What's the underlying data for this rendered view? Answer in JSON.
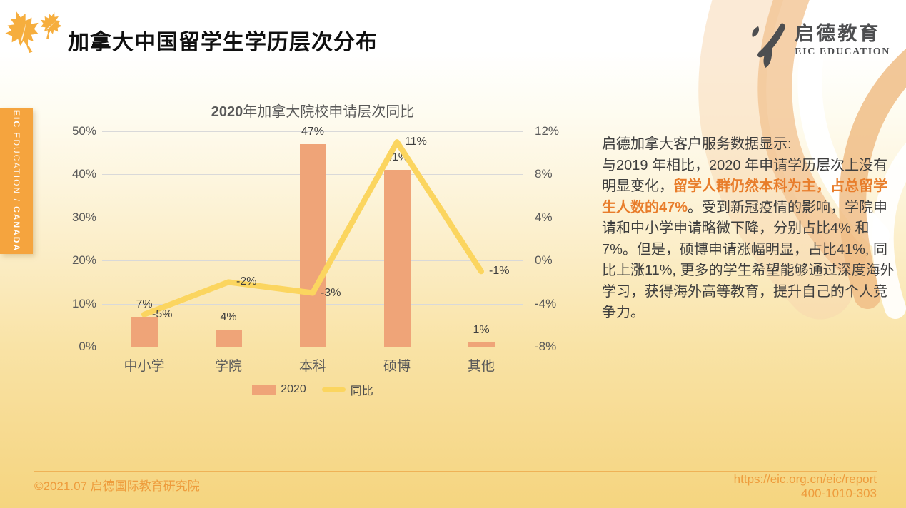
{
  "page": {
    "title": "加拿大中国留学生学历层次分布"
  },
  "sidebar_tab": {
    "bold1": "EIC",
    "light": " EDUCATION / ",
    "bold2": "CANADA"
  },
  "logo": {
    "name_cn": "启德教育",
    "name_en": "EIC EDUCATION"
  },
  "chart_data": {
    "type": "bar",
    "combo": "bar+line",
    "title": "2020年加拿大院校申请层次同比",
    "title_prefix": "2020",
    "title_suffix": "年加拿大院校申请层次同比",
    "categories": [
      "中小学",
      "学院",
      "本科",
      "硕博",
      "其他"
    ],
    "series": [
      {
        "name": "2020",
        "type": "bar",
        "axis": "left",
        "values": [
          7,
          4,
          47,
          41,
          1
        ],
        "labels": [
          "7%",
          "4%",
          "47%",
          "41%",
          "1%"
        ],
        "color": "#efa478"
      },
      {
        "name": "同比",
        "type": "line",
        "axis": "right",
        "values": [
          -5,
          -2,
          -3,
          11,
          -1
        ],
        "labels": [
          "-5%",
          "-2%",
          "-3%",
          "11%",
          "-1%"
        ],
        "color": "#fbd55f"
      }
    ],
    "left_axis": {
      "min": 0,
      "max": 50,
      "step": 10,
      "tick_labels": [
        "0%",
        "10%",
        "20%",
        "30%",
        "40%",
        "50%"
      ]
    },
    "right_axis": {
      "min": -8,
      "max": 12,
      "step": 4,
      "tick_labels": [
        "-8%",
        "-4%",
        "0%",
        "4%",
        "8%",
        "12%"
      ]
    },
    "grid": true,
    "legend_position": "bottom"
  },
  "insight": {
    "heading": "启德加拿大客户服务数据显示:",
    "before": "与2019 年相比，2020 年申请学历层次上没有明显变化，",
    "highlight": "留学人群仍然本科为主，占总留学生人数的47%",
    "after": "。受到新冠疫情的影响，学院申请和中小学申请略微下降，分别占比4% 和7%。但是，硕博申请涨幅明显，占比41%, 同比上涨11%, 更多的学生希望能够通过深度海外学习，获得海外高等教育，提升自己的个人竞争力。"
  },
  "footer": {
    "copyright": "©2021.07 启德国际教育研究院",
    "url": "https://eic.org.cn/eic/report",
    "phone": "400-1010-303"
  },
  "colors": {
    "bar": "#efa478",
    "line": "#fbd55f",
    "highlight_text": "#e87d2b",
    "tab_orange": "#f5a43e",
    "footer_orange": "#ee9c3c",
    "leaf_orange": "#f6ae3e",
    "logo_gray": "#4d4e50",
    "gridline": "#d9d9d9",
    "axis_text": "#595959"
  }
}
